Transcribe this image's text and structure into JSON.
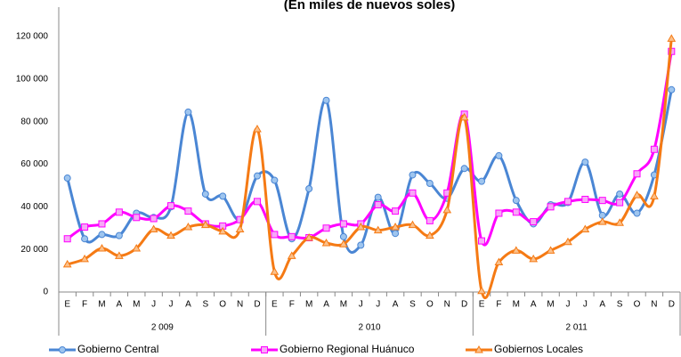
{
  "chart_data": {
    "type": "line",
    "title": "(En miles de nuevos soles)",
    "categories": [
      "E",
      "F",
      "M",
      "A",
      "M",
      "J",
      "J",
      "A",
      "S",
      "O",
      "N",
      "D",
      "E",
      "F",
      "M",
      "A",
      "M",
      "J",
      "J",
      "A",
      "S",
      "O",
      "N",
      "D",
      "E",
      "F",
      "M",
      "A",
      "M",
      "J",
      "J",
      "A",
      "S",
      "O",
      "N",
      "D"
    ],
    "category_groups": [
      "2 009",
      "2 010",
      "2 011"
    ],
    "series": [
      {
        "name": "Gobierno Central",
        "color": "#4a86d4",
        "values": [
          53.5,
          25,
          27,
          26.5,
          37,
          35,
          40,
          84.5,
          46,
          45,
          34,
          54.5,
          52.5,
          25,
          48.5,
          90,
          26,
          22,
          44.5,
          27.5,
          55,
          51,
          44,
          58,
          52,
          64,
          43,
          32,
          41,
          42,
          61,
          36,
          46,
          37,
          55,
          95
        ]
      },
      {
        "name": "Gobierno Regional Huánuco",
        "color": "#ff00ff",
        "values": [
          25,
          30.5,
          32,
          37.5,
          35,
          34.5,
          40.5,
          38,
          32,
          31,
          34,
          42.5,
          27,
          26,
          25.5,
          30,
          32,
          32,
          41,
          38,
          46.5,
          33.5,
          46.5,
          83.5,
          24,
          37,
          37.5,
          33,
          40,
          42.5,
          43.5,
          43,
          42,
          55.5,
          67,
          113
        ]
      },
      {
        "name": "Gobiernos Locales",
        "color": "#f57a14",
        "values": [
          13,
          15.5,
          20.5,
          17,
          20.5,
          29.5,
          26.5,
          30.5,
          31.5,
          28.5,
          29.5,
          76.5,
          9.5,
          17,
          25.5,
          23,
          22.5,
          30.5,
          29,
          30.5,
          31.5,
          26.5,
          38.5,
          82,
          0.5,
          14,
          19.5,
          15.5,
          19.5,
          23.5,
          29.5,
          33,
          32.5,
          45.5,
          45,
          119
        ]
      }
    ],
    "value_scale": 1000,
    "ylim": [
      0,
      120000
    ],
    "yticks": [
      0,
      {
        "value": 20000,
        "label": "20 000"
      },
      {
        "value": 40000,
        "label": "40 000"
      },
      {
        "value": 60000,
        "label": "60 000"
      },
      {
        "value": 80000,
        "label": "80 000"
      },
      {
        "value": 100000,
        "label": "100 000"
      },
      {
        "value": 120000,
        "label": "120 000"
      }
    ],
    "legend": "bottom"
  }
}
